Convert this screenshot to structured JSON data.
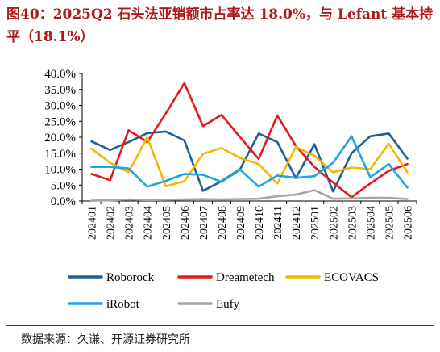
{
  "title": "图40：2025Q2 石头法亚销额市占率达 18.0%，与 Lefant 基本持平（18.1%）",
  "source": "数据来源：久谦、开源证券研究所",
  "chart_data": {
    "type": "line",
    "title": "",
    "xlabel": "",
    "ylabel": "",
    "ylim": [
      0,
      40
    ],
    "y_ticks": [
      "40.0%",
      "35.0%",
      "30.0%",
      "25.0%",
      "20.0%",
      "15.0%",
      "10.0%",
      "5.0%",
      "0.0%"
    ],
    "y_tick_values": [
      40,
      35,
      30,
      25,
      20,
      15,
      10,
      5,
      0
    ],
    "grid": false,
    "legend_position": "bottom",
    "x": [
      "202401",
      "202402",
      "202403",
      "202404",
      "202405",
      "202406",
      "202407",
      "202408",
      "202409",
      "202410",
      "202411",
      "202412",
      "202501",
      "202502",
      "202503",
      "202504",
      "202505",
      "202506"
    ],
    "series": [
      {
        "name": "Roborock",
        "color": "#1f5f96",
        "values": [
          18.7,
          16.0,
          18.5,
          21.3,
          21.8,
          19.0,
          3.2,
          6.2,
          10.0,
          21.2,
          18.5,
          7.2,
          17.8,
          3.0,
          15.0,
          20.3,
          21.2,
          13.3
        ]
      },
      {
        "name": "Dreametech",
        "color": "#e41a1c",
        "values": [
          8.5,
          6.5,
          22.2,
          18.5,
          27.5,
          37.0,
          23.5,
          27.0,
          20.0,
          13.2,
          26.8,
          17.3,
          10.7,
          5.8,
          1.2,
          5.5,
          9.5,
          11.6
        ]
      },
      {
        "name": "ECOVACS",
        "color": "#f5b800",
        "values": [
          16.4,
          12.0,
          9.0,
          20.0,
          4.6,
          6.2,
          14.8,
          16.6,
          13.5,
          11.6,
          5.5,
          17.0,
          14.2,
          9.0,
          10.5,
          10.0,
          18.0,
          9.0
        ]
      },
      {
        "name": "iRobot",
        "color": "#1ea6dc",
        "values": [
          10.7,
          10.7,
          10.2,
          4.5,
          6.3,
          8.5,
          8.2,
          6.0,
          9.8,
          4.5,
          8.0,
          7.3,
          7.8,
          12.0,
          20.3,
          7.5,
          11.6,
          4.2
        ]
      },
      {
        "name": "Eufy",
        "color": "#a6a6a6",
        "values": [
          0.1,
          0.2,
          0.5,
          0.3,
          0.4,
          0.5,
          0.6,
          0.5,
          0.6,
          0.7,
          1.5,
          2.0,
          3.4,
          0.7,
          0.8,
          1.0,
          1.0,
          0.6
        ]
      }
    ]
  }
}
